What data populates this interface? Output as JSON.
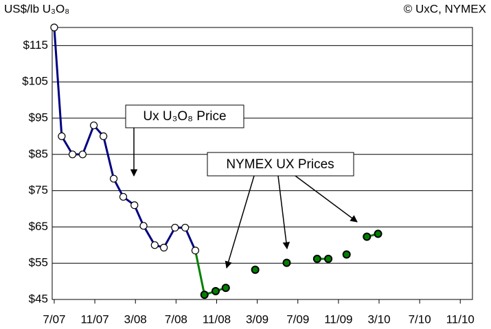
{
  "chart_data": {
    "type": "line",
    "y_unit_label": "US$/lb U₃O₈",
    "source": "© UxC, NYMEX",
    "annotations": [
      "Ux U₃O₈ Price",
      "NYMEX UX Prices"
    ],
    "series": [
      {
        "name": "Ux U₃O₈ Price",
        "color": "#000080",
        "x": [
          0,
          0.74,
          1.8,
          2.8,
          3.9,
          4.85,
          5.86,
          6.8,
          7.9,
          8.8,
          9.9,
          10.8,
          11.9,
          12.9,
          13.9
        ],
        "values": [
          120,
          90,
          85,
          85,
          93,
          90,
          78.3,
          73.3,
          71,
          65.3,
          60,
          59.3,
          64.8,
          64.8,
          58.5
        ]
      },
      {
        "name": "NYMEX UX Prices",
        "color": "#008000",
        "x": [
          14.8,
          15.9,
          16.9,
          null,
          19.8,
          null,
          22.9,
          null,
          25.9,
          27,
          null,
          28.8,
          null,
          30.8,
          31.9
        ],
        "values": [
          46.3,
          47.3,
          48.2,
          null,
          53.2,
          null,
          55.1,
          null,
          56.2,
          56.2,
          null,
          57.4,
          null,
          62.3,
          63.1
        ]
      }
    ],
    "xlim": [
      -0.2,
      41.2
    ],
    "xticks": [
      {
        "value": 0,
        "label": "7/07"
      },
      {
        "value": 4,
        "label": "11/07"
      },
      {
        "value": 8,
        "label": "3/08"
      },
      {
        "value": 12,
        "label": "7/08"
      },
      {
        "value": 16,
        "label": "11/08"
      },
      {
        "value": 20,
        "label": "3/09"
      },
      {
        "value": 24,
        "label": "7/09"
      },
      {
        "value": 28,
        "label": "11/09"
      },
      {
        "value": 32,
        "label": "3/10"
      },
      {
        "value": 36,
        "label": "7/10"
      },
      {
        "value": 40,
        "label": "11/10"
      }
    ],
    "ylim": [
      45,
      120
    ],
    "yticks": [
      {
        "value": 45,
        "label": "$45"
      },
      {
        "value": 55,
        "label": "$55"
      },
      {
        "value": 65,
        "label": "$65"
      },
      {
        "value": 75,
        "label": "$75"
      },
      {
        "value": 85,
        "label": "$85"
      },
      {
        "value": 95,
        "label": "$95"
      },
      {
        "value": 105,
        "label": "$105"
      },
      {
        "value": 115,
        "label": "$115"
      }
    ],
    "grid": true
  }
}
